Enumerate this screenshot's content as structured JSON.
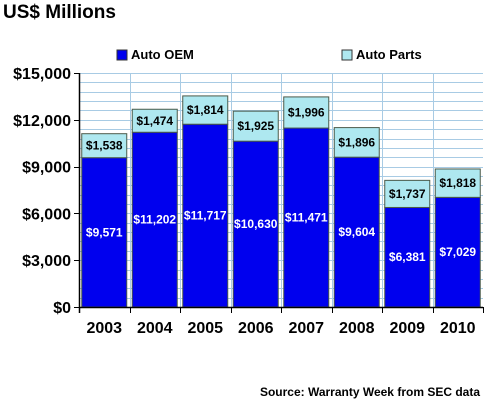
{
  "chart_data": {
    "type": "bar",
    "stacked": true,
    "title": "US$ Millions",
    "source": "Source: Warranty Week from SEC data",
    "categories": [
      "2003",
      "2004",
      "2005",
      "2006",
      "2007",
      "2008",
      "2009",
      "2010"
    ],
    "series": [
      {
        "name": "Auto OEM",
        "color": "#0000ee",
        "values": [
          9571,
          11202,
          11717,
          10630,
          11471,
          9604,
          6381,
          7029
        ],
        "labels": [
          "$9,571",
          "$11,202",
          "$11,717",
          "$10,630",
          "$11,471",
          "$9,604",
          "$6,381",
          "$7,029"
        ]
      },
      {
        "name": "Auto Parts",
        "color": "#aee8f0",
        "values": [
          1538,
          1474,
          1814,
          1925,
          1996,
          1896,
          1737,
          1818
        ],
        "labels": [
          "$1,538",
          "$1,474",
          "$1,814",
          "$1,925",
          "$1,996",
          "$1,896",
          "$1,737",
          "$1,818"
        ]
      }
    ],
    "ylim": [
      0,
      15000
    ],
    "yticks": [
      0,
      3000,
      6000,
      9000,
      12000,
      15000
    ],
    "ytick_labels": [
      "$0",
      "$3,000",
      "$6,000",
      "$9,000",
      "$12,000",
      "$15,000"
    ],
    "minor_grid_step": 600,
    "grid": true,
    "legend_position": "top",
    "colors": {
      "grid": "#a8cbe4",
      "bar_outline": "#4a5a4a",
      "background": "#ffffff"
    }
  }
}
